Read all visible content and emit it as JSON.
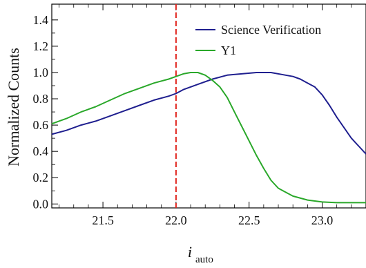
{
  "chart_data": {
    "type": "line",
    "xlabel_main": "i",
    "xlabel_sub": "auto",
    "ylabel": "Normalized Counts",
    "xlim": [
      21.15,
      23.3
    ],
    "ylim": [
      -0.03,
      1.52
    ],
    "x_ticks": [
      "21.5",
      "22.0",
      "22.5",
      "23.0"
    ],
    "x_tick_values": [
      21.5,
      22.0,
      22.5,
      23.0
    ],
    "y_ticks": [
      "0.0",
      "0.2",
      "0.4",
      "0.6",
      "0.8",
      "1.0",
      "1.2",
      "1.4"
    ],
    "y_tick_values": [
      0.0,
      0.2,
      0.4,
      0.6,
      0.8,
      1.0,
      1.2,
      1.4
    ],
    "vline": {
      "x": 22.0,
      "color": "#e0231c",
      "style": "dashed"
    },
    "legend_position": "top-right",
    "series": [
      {
        "name": "Science Verification",
        "color": "#1f1f8f",
        "x": [
          21.15,
          21.25,
          21.35,
          21.45,
          21.55,
          21.65,
          21.75,
          21.85,
          21.95,
          22.0,
          22.05,
          22.15,
          22.25,
          22.35,
          22.45,
          22.55,
          22.65,
          22.75,
          22.8,
          22.85,
          22.9,
          22.95,
          23.0,
          23.05,
          23.1,
          23.15,
          23.2,
          23.25,
          23.3
        ],
        "values": [
          0.53,
          0.56,
          0.6,
          0.63,
          0.67,
          0.71,
          0.75,
          0.79,
          0.82,
          0.84,
          0.87,
          0.91,
          0.95,
          0.98,
          0.99,
          1.0,
          1.0,
          0.98,
          0.97,
          0.95,
          0.92,
          0.89,
          0.83,
          0.75,
          0.66,
          0.58,
          0.5,
          0.44,
          0.38
        ]
      },
      {
        "name": "Y1",
        "color": "#2aa82a",
        "x": [
          21.15,
          21.25,
          21.35,
          21.45,
          21.55,
          21.65,
          21.75,
          21.85,
          21.95,
          22.0,
          22.05,
          22.1,
          22.15,
          22.2,
          22.25,
          22.3,
          22.35,
          22.4,
          22.45,
          22.5,
          22.55,
          22.6,
          22.65,
          22.7,
          22.75,
          22.8,
          22.9,
          23.0,
          23.1,
          23.2,
          23.3
        ],
        "values": [
          0.61,
          0.65,
          0.7,
          0.74,
          0.79,
          0.84,
          0.88,
          0.92,
          0.95,
          0.97,
          0.99,
          1.0,
          1.0,
          0.98,
          0.94,
          0.89,
          0.81,
          0.7,
          0.59,
          0.48,
          0.37,
          0.27,
          0.18,
          0.12,
          0.09,
          0.06,
          0.03,
          0.015,
          0.01,
          0.01,
          0.01
        ]
      }
    ]
  }
}
